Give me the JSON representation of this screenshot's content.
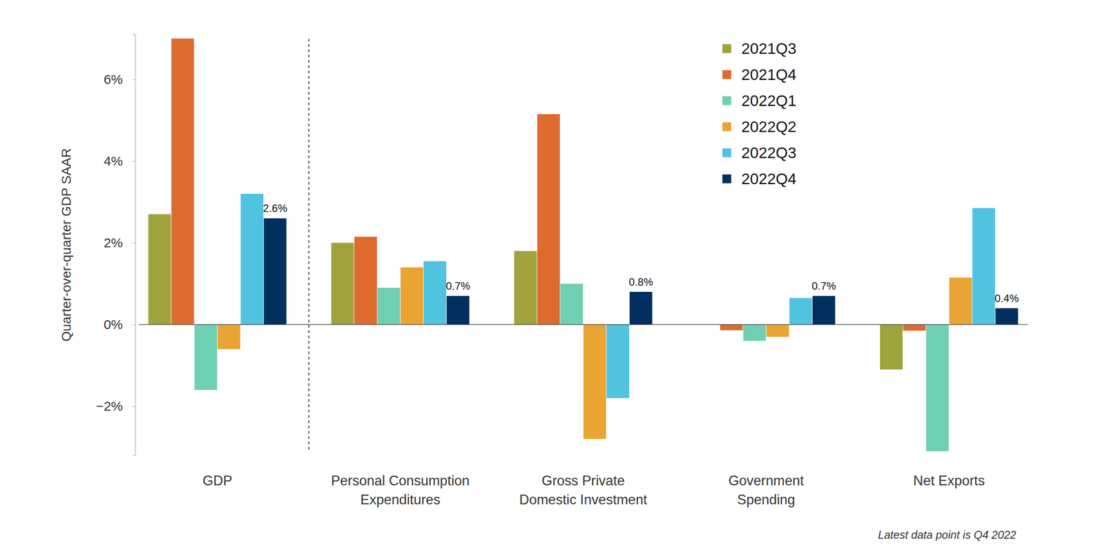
{
  "chart_data": {
    "type": "bar",
    "y_label": "Quarter-over-quarter GDP SAAR",
    "note": "Latest data point is Q4 2022",
    "categories": [
      "GDP",
      "Personal Consumption\nExpenditures",
      "Gross Private\nDomestic Investment",
      "Government\nSpending",
      "Net Exports"
    ],
    "series": [
      {
        "name": "2021Q3",
        "color": "#a0a33b",
        "values": [
          2.7,
          2.0,
          1.8,
          0.0,
          -1.1
        ]
      },
      {
        "name": "2021Q4",
        "color": "#dd6b30",
        "values": [
          7.0,
          2.15,
          5.15,
          -0.14,
          -0.15
        ]
      },
      {
        "name": "2022Q1",
        "color": "#6fcfb3",
        "values": [
          -1.6,
          0.9,
          1.0,
          -0.4,
          -3.1
        ]
      },
      {
        "name": "2022Q2",
        "color": "#e9a434",
        "values": [
          -0.6,
          1.4,
          -2.8,
          -0.3,
          1.15
        ]
      },
      {
        "name": "2022Q3",
        "color": "#4fc3e0",
        "values": [
          3.2,
          1.55,
          -1.8,
          0.65,
          2.85
        ]
      },
      {
        "name": "2022Q4",
        "color": "#00305e",
        "values": [
          2.6,
          0.7,
          0.8,
          0.7,
          0.4
        ],
        "value_labels": [
          "2.6%",
          "0.7%",
          "0.8%",
          "0.7%",
          "0.4%"
        ]
      }
    ],
    "ylim": [
      -3.2,
      7.1
    ],
    "yticks": [
      {
        "value": -2,
        "label": "−2%"
      },
      {
        "value": 0,
        "label": "0%"
      },
      {
        "value": 2,
        "label": "2%"
      },
      {
        "value": 4,
        "label": "4%"
      },
      {
        "value": 6,
        "label": "6%"
      }
    ],
    "grid": false,
    "legend": "upper right",
    "data_labels": true
  }
}
